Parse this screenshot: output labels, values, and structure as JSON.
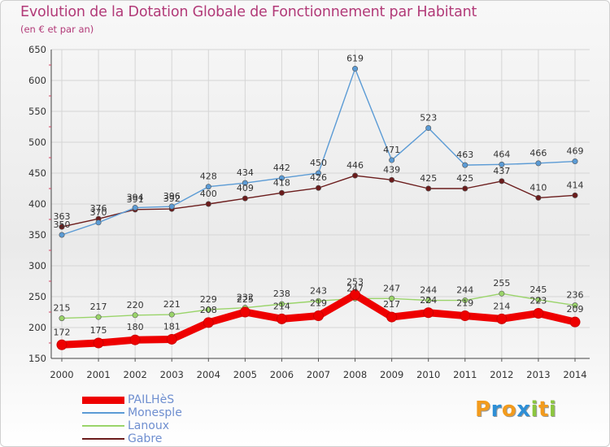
{
  "header": {
    "title": "Evolution de la Dotation Globale de Fonctionnement par Habitant",
    "subtitle": "(en € et par an)"
  },
  "logo": {
    "text": "Proxiti"
  },
  "colors": {
    "title": "#b23a78",
    "axis_labels": "#333333",
    "legend_text": "#6f8fd0",
    "grid": "#d5d5d5"
  },
  "chart_data": {
    "type": "line",
    "title": "Evolution de la Dotation Globale de Fonctionnement par Habitant",
    "subtitle": "(en € et par an)",
    "xlabel": "",
    "ylabel": "",
    "x": [
      "2000",
      "2001",
      "2002",
      "2003",
      "2004",
      "2005",
      "2006",
      "2007",
      "2008",
      "2009",
      "2010",
      "2011",
      "2012",
      "2013",
      "2014"
    ],
    "ylim": [
      150,
      650
    ],
    "yticks": [
      150,
      200,
      250,
      300,
      350,
      400,
      450,
      500,
      550,
      600,
      650
    ],
    "grid": true,
    "legend_position": "bottom-left",
    "series": [
      {
        "name": "PAILHèS",
        "color": "#ee0000",
        "values": [
          172,
          175,
          180,
          181,
          208,
          225,
          214,
          219,
          253,
          217,
          224,
          219,
          214,
          223,
          209
        ]
      },
      {
        "name": "Monesple",
        "color": "#5b9bd5",
        "values": [
          350,
          370,
          394,
          396,
          428,
          434,
          442,
          450,
          619,
          471,
          523,
          463,
          464,
          466,
          469
        ]
      },
      {
        "name": "Lanoux",
        "color": "#9ad46a",
        "values": [
          215,
          217,
          220,
          221,
          229,
          232,
          238,
          243,
          247,
          247,
          244,
          244,
          255,
          245,
          236
        ]
      },
      {
        "name": "Gabre",
        "color": "#6b1c1c",
        "values": [
          363,
          376,
          391,
          392,
          400,
          409,
          418,
          426,
          446,
          439,
          425,
          425,
          437,
          410,
          414
        ]
      }
    ]
  }
}
